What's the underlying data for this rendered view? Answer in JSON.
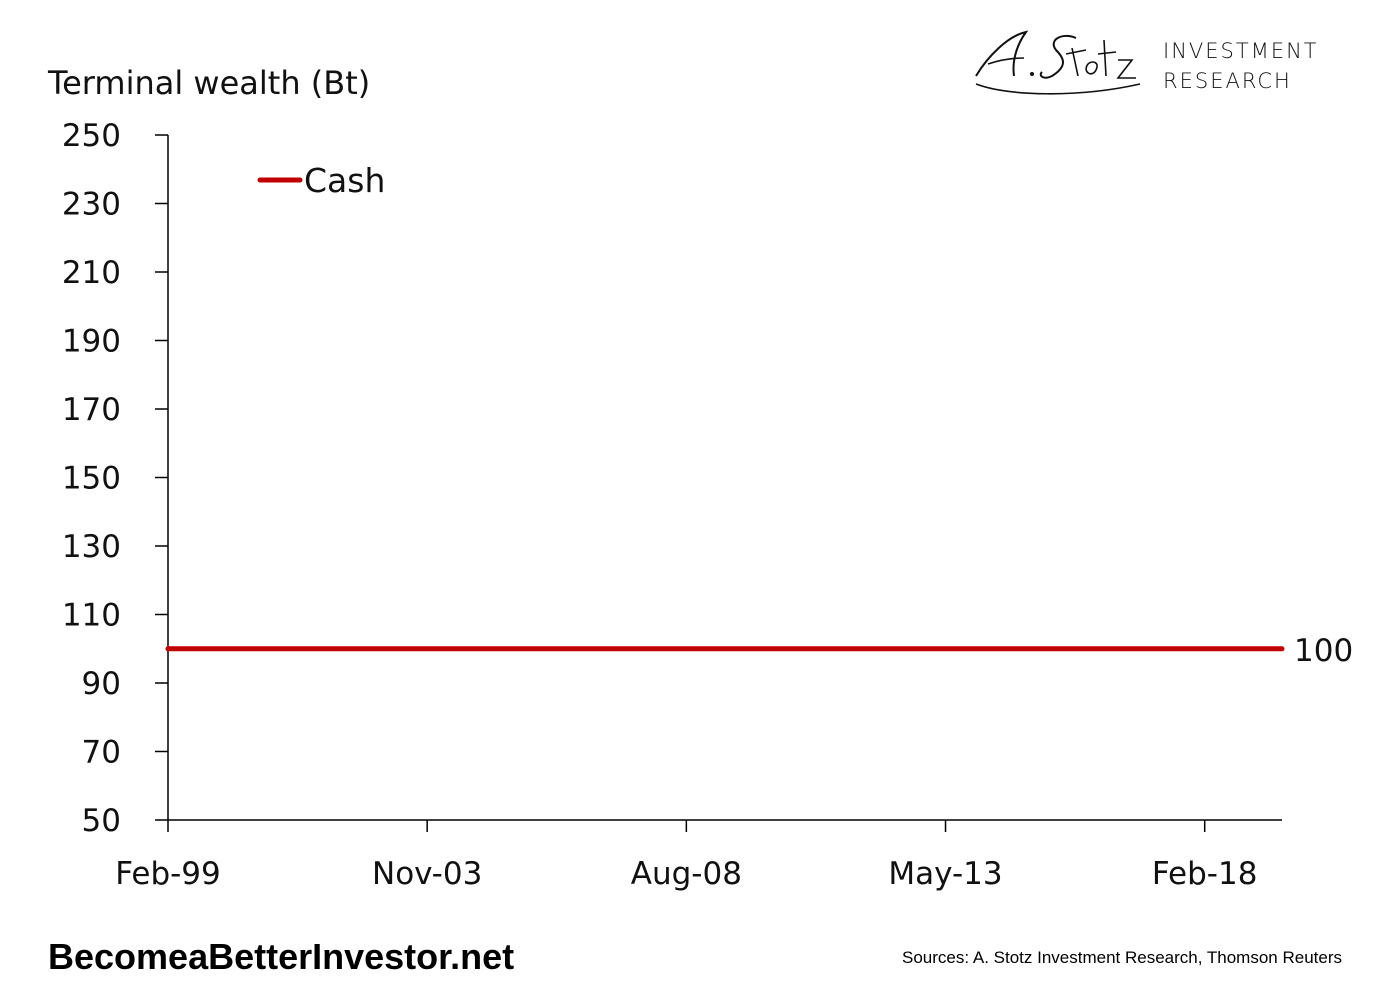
{
  "logo": {
    "script_text": "A. Stotz",
    "line1": "INVESTMENT",
    "line2": "RESEARCH"
  },
  "footer": {
    "site": "BecomeaBetterInvestor.net",
    "sources": "Sources: A. Stotz Investment Research, Thomson Reuters"
  },
  "colors": {
    "series": "#c00000",
    "axis": "#000000"
  },
  "chart_data": {
    "type": "line",
    "title": "",
    "ylabel": "Terminal wealth (Bt)",
    "xlabel": "",
    "ylim": [
      50,
      250
    ],
    "yticks": [
      50,
      70,
      90,
      110,
      130,
      150,
      170,
      190,
      210,
      230,
      250
    ],
    "xticks": [
      "Feb-99",
      "Nov-03",
      "Aug-08",
      "May-13",
      "Feb-18"
    ],
    "xrange": [
      "Feb-99",
      "Jul-19"
    ],
    "grid": false,
    "legend_position": "top-left",
    "series": [
      {
        "name": "Cash",
        "color": "#c00000",
        "x": [
          "Feb-99",
          "Jul-19"
        ],
        "values": [
          100,
          100
        ],
        "end_label": "100"
      }
    ]
  }
}
